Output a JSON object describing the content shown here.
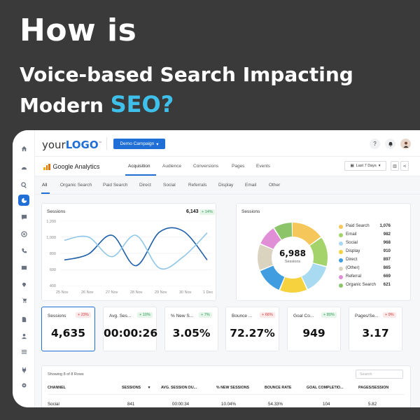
{
  "headline": {
    "line1": "How is",
    "line2": "Voice-based Search Impacting",
    "line3_a": "Modern",
    "line3_b": "SEO?"
  },
  "colors": {
    "accent": "#1f6fd6",
    "highlight": "#3fc0ea",
    "background": "#3a3a3a"
  },
  "topbar": {
    "logo_a": "your",
    "logo_b": "LOGO",
    "logo_mark": "™",
    "campaign_label": "Demo Campaign",
    "help_icon": "?",
    "bell_icon": "bell-icon"
  },
  "ga": {
    "title": "Google Analytics",
    "tabs": [
      "Acquisition",
      "Audience",
      "Conversions",
      "Pages",
      "Events"
    ],
    "active_tab": "Acquisition",
    "date_range": "Last 7 Days"
  },
  "filters": {
    "tabs": [
      "All",
      "Organic Search",
      "Paid Search",
      "Direct",
      "Social",
      "Referrals",
      "Display",
      "Email",
      "Other"
    ],
    "active": "All"
  },
  "sessions_chart": {
    "label": "Sessions",
    "value": "6,143",
    "change": "+ 14%",
    "y_ticks": [
      "1,200",
      "1,000",
      "800",
      "600",
      "400"
    ],
    "x_ticks": [
      "25 Nov",
      "26 Nov",
      "27 Nov",
      "28 Nov",
      "29 Nov",
      "30 Nov",
      "1 Dec"
    ]
  },
  "chart_data": {
    "type": "line",
    "title": "Sessions",
    "x": [
      "25 Nov",
      "26 Nov",
      "27 Nov",
      "28 Nov",
      "29 Nov",
      "30 Nov",
      "1 Dec"
    ],
    "ylim": [
      400,
      1200
    ],
    "grid": true,
    "series": [
      {
        "values": [
          720,
          790,
          1020,
          650,
          1060,
          1070,
          720
        ],
        "color": "#1f5fa8"
      },
      {
        "values": [
          960,
          1000,
          760,
          1020,
          620,
          760,
          1050
        ],
        "color": "#8fc6e8"
      }
    ]
  },
  "donut": {
    "label": "Sessions",
    "total": "6,988",
    "center_label": "Sessions",
    "items": [
      {
        "name": "Paid Search",
        "value": "1,076",
        "num": 1076,
        "color": "#f5c65a"
      },
      {
        "name": "Email",
        "value": "982",
        "num": 982,
        "color": "#a3d36a"
      },
      {
        "name": "Social",
        "value": "968",
        "num": 968,
        "color": "#a8dbf2"
      },
      {
        "name": "Display",
        "value": "910",
        "num": 910,
        "color": "#f6d23e"
      },
      {
        "name": "Direct",
        "value": "897",
        "num": 897,
        "color": "#3f9de0"
      },
      {
        "name": "(Other)",
        "value": "865",
        "num": 865,
        "color": "#d9d3c0"
      },
      {
        "name": "Referral",
        "value": "669",
        "num": 669,
        "color": "#e08fd6"
      },
      {
        "name": "Organic Search",
        "value": "621",
        "num": 621,
        "color": "#8cc46a"
      }
    ]
  },
  "metrics": [
    {
      "label": "Sessions",
      "value": "4,635",
      "change": "+ 23%",
      "dir": "down"
    },
    {
      "label": "Avg. Ses...",
      "value": "00:00:26",
      "change": "+ 10%",
      "dir": "up"
    },
    {
      "label": "% New S...",
      "value": "3.05%",
      "change": "+ 7%",
      "dir": "up"
    },
    {
      "label": "Bounce ...",
      "value": "72.27%",
      "change": "+ 66%",
      "dir": "down"
    },
    {
      "label": "Goal Co...",
      "value": "949",
      "change": "+ 80%",
      "dir": "up"
    },
    {
      "label": "Pages/Se...",
      "value": "3.17",
      "change": "+ 9%",
      "dir": "down"
    }
  ],
  "table": {
    "info": "Showing 8 of 8 Rows",
    "search_placeholder": "Search",
    "headers": [
      "CHANNEL",
      "SESSIONS",
      "AVG. SESSION DU...",
      "% NEW SESSIONS",
      "BOUNCE RATE",
      "GOAL COMPLETIO...",
      "PAGES/SESSION"
    ],
    "rows": [
      [
        "Social",
        "841",
        "00:00:34",
        "10.04%",
        "54.33%",
        "104",
        "5.82"
      ]
    ]
  }
}
